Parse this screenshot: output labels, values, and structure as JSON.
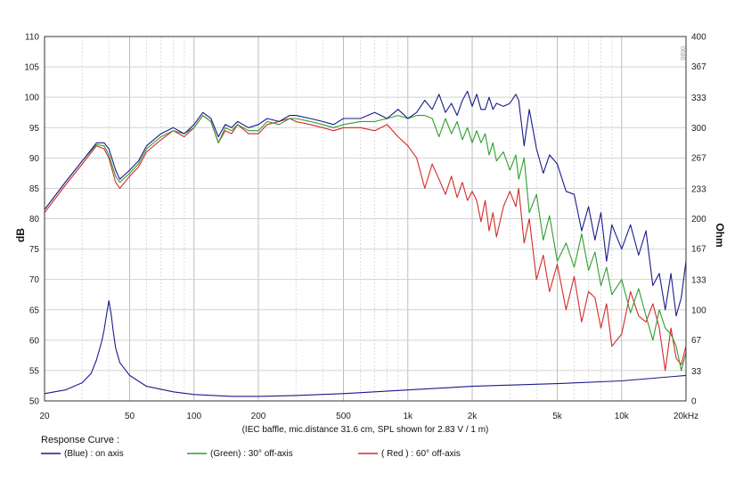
{
  "chart_data": {
    "type": "line",
    "title": "",
    "xscale": "log",
    "xlim": [
      20,
      20000
    ],
    "x_ticks": [
      20,
      50,
      100,
      200,
      500,
      1000,
      2000,
      5000,
      10000,
      20000
    ],
    "x_tick_labels": [
      "20",
      "50",
      "100",
      "200",
      "500",
      "1k",
      "2k",
      "5k",
      "10k",
      "20kHz"
    ],
    "ylim": [
      50,
      110
    ],
    "y_ticks": [
      50,
      55,
      60,
      65,
      70,
      75,
      80,
      85,
      90,
      95,
      100,
      105,
      110
    ],
    "y_tick_labels": [
      "50",
      "55",
      "60",
      "65",
      "70",
      "75",
      "80",
      "85",
      "90",
      "95",
      "100",
      "105",
      "110"
    ],
    "ylabel": "dB",
    "y2lim": [
      0,
      400
    ],
    "y2_ticks": [
      0,
      33,
      67,
      100,
      133,
      167,
      200,
      233,
      267,
      300,
      333,
      367,
      400
    ],
    "y2_tick_labels": [
      "0",
      "33",
      "67",
      "100",
      "133",
      "167",
      "200",
      "233",
      "267",
      "300",
      "333",
      "367",
      "400"
    ],
    "y2label": "Ohm",
    "caption": "(IEC baffle, mic.distance 31.6 cm, SPL shown for 2.83 V / 1 m)",
    "watermark": "0680",
    "grid": true,
    "legend": {
      "title": "Response Curve :",
      "entries": [
        {
          "label": "(Blue)  : on axis",
          "color": "#1a1a8c"
        },
        {
          "label": "(Green) : 30° off-axis",
          "color": "#2e9e2e"
        },
        {
          "label": "( Red ) : 60° off-axis",
          "color": "#d42a2a"
        }
      ]
    },
    "series": [
      {
        "name": "on axis",
        "color": "#1a1a8c",
        "axis": "left",
        "x": [
          20,
          25,
          30,
          35,
          38,
          40,
          43,
          45,
          50,
          55,
          60,
          70,
          80,
          90,
          100,
          110,
          120,
          130,
          140,
          150,
          160,
          180,
          200,
          220,
          250,
          280,
          300,
          350,
          400,
          450,
          500,
          600,
          700,
          800,
          900,
          1000,
          1100,
          1200,
          1300,
          1400,
          1500,
          1600,
          1700,
          1800,
          1900,
          2000,
          2100,
          2200,
          2300,
          2400,
          2500,
          2600,
          2800,
          3000,
          3200,
          3300,
          3500,
          3700,
          4000,
          4300,
          4600,
          5000,
          5500,
          6000,
          6500,
          7000,
          7500,
          8000,
          8500,
          9000,
          10000,
          11000,
          12000,
          13000,
          14000,
          15000,
          16000,
          17000,
          18000,
          19000,
          20000
        ],
        "y": [
          81.5,
          86,
          89.5,
          92.5,
          92.5,
          91.5,
          88,
          86.5,
          88,
          89.5,
          92,
          94,
          95,
          94,
          95.5,
          97.5,
          96.5,
          93.5,
          95.5,
          95,
          96,
          95,
          95.5,
          96.5,
          96,
          97,
          97,
          96.5,
          96,
          95.5,
          96.5,
          96.5,
          97.5,
          96.5,
          98,
          96.5,
          97.5,
          99.5,
          98,
          100.5,
          97.5,
          99,
          97,
          99.5,
          101,
          98.5,
          100.5,
          98,
          98,
          100,
          98,
          99,
          98.5,
          99,
          100.5,
          99.5,
          92,
          98,
          91.5,
          87.5,
          90.5,
          89,
          84.5,
          84,
          78,
          82,
          76.5,
          81,
          73,
          79,
          75,
          79,
          74,
          78,
          69,
          71,
          65,
          71,
          64,
          67,
          73
        ]
      },
      {
        "name": "30° off-axis",
        "color": "#2e9e2e",
        "axis": "left",
        "x": [
          20,
          25,
          30,
          35,
          38,
          40,
          43,
          45,
          50,
          55,
          60,
          70,
          80,
          90,
          100,
          110,
          120,
          130,
          140,
          150,
          160,
          180,
          200,
          220,
          250,
          280,
          300,
          350,
          400,
          450,
          500,
          600,
          700,
          800,
          900,
          1000,
          1100,
          1200,
          1300,
          1400,
          1500,
          1600,
          1700,
          1800,
          1900,
          2000,
          2100,
          2200,
          2300,
          2400,
          2500,
          2600,
          2800,
          3000,
          3200,
          3300,
          3500,
          3700,
          4000,
          4300,
          4600,
          5000,
          5500,
          6000,
          6500,
          7000,
          7500,
          8000,
          8500,
          9000,
          10000,
          11000,
          12000,
          13000,
          14000,
          15000,
          16000,
          17000,
          18000,
          19000,
          20000
        ],
        "y": [
          81.5,
          86,
          89.5,
          92.2,
          92,
          90.5,
          87,
          86,
          87.5,
          89,
          91.5,
          93.5,
          94.5,
          94,
          95,
          97,
          96,
          92.5,
          95,
          94.5,
          95.5,
          94.5,
          94.5,
          96,
          95.5,
          96.5,
          96.5,
          96,
          95.5,
          95,
          95.5,
          96,
          96,
          96.5,
          97,
          96.5,
          97,
          97,
          96.5,
          93.5,
          96.5,
          94,
          96,
          93,
          95,
          92.5,
          94.5,
          92.5,
          94,
          90.5,
          92.5,
          89.5,
          91,
          88,
          90.5,
          86.5,
          90,
          81,
          84,
          76.5,
          80.5,
          73,
          76,
          72,
          77.5,
          71.5,
          74.5,
          69,
          72,
          67.5,
          70,
          64.5,
          68.5,
          64,
          60,
          65,
          62,
          61,
          59,
          55,
          58
        ]
      },
      {
        "name": "60° off-axis",
        "color": "#d42a2a",
        "axis": "left",
        "x": [
          20,
          25,
          30,
          35,
          38,
          40,
          43,
          45,
          50,
          55,
          60,
          70,
          80,
          90,
          100,
          110,
          120,
          130,
          140,
          150,
          160,
          180,
          200,
          220,
          250,
          280,
          300,
          350,
          400,
          450,
          500,
          600,
          700,
          800,
          900,
          1000,
          1100,
          1200,
          1300,
          1400,
          1500,
          1600,
          1700,
          1800,
          1900,
          2000,
          2100,
          2200,
          2300,
          2400,
          2500,
          2600,
          2800,
          3000,
          3200,
          3300,
          3500,
          3700,
          4000,
          4300,
          4600,
          5000,
          5500,
          6000,
          6500,
          7000,
          7500,
          8000,
          8500,
          9000,
          10000,
          11000,
          12000,
          13000,
          14000,
          15000,
          16000,
          17000,
          18000,
          19000,
          20000
        ],
        "y": [
          81,
          85.5,
          89,
          92,
          91.5,
          90,
          86,
          85,
          87,
          88.5,
          91,
          93,
          94.5,
          93.5,
          95,
          97,
          96,
          92.5,
          94.5,
          94,
          95.5,
          94,
          94,
          95.5,
          96,
          96.5,
          96,
          95.5,
          95,
          94.5,
          95,
          95,
          94.5,
          95.5,
          93.5,
          92,
          90,
          85,
          89,
          86.5,
          84,
          87,
          83.5,
          86,
          83,
          84.5,
          83,
          79.5,
          83,
          78,
          81,
          77,
          82,
          84.5,
          82,
          85,
          76,
          80,
          70,
          74,
          68,
          72.5,
          65,
          70.5,
          63,
          68,
          67,
          62,
          66,
          59,
          61,
          68,
          64,
          63,
          66,
          62,
          55,
          62,
          57,
          56,
          59
        ]
      },
      {
        "name": "impedance",
        "color": "#1a1a8c",
        "axis": "right",
        "x": [
          20,
          25,
          30,
          33,
          35,
          37,
          38,
          39,
          40,
          41,
          42,
          43,
          45,
          50,
          60,
          80,
          100,
          150,
          200,
          300,
          500,
          1000,
          2000,
          5000,
          10000,
          20000
        ],
        "y": [
          8,
          12,
          20,
          30,
          45,
          65,
          78,
          95,
          110,
          95,
          75,
          58,
          42,
          28,
          16,
          10,
          7,
          5,
          5,
          6,
          8,
          12,
          16,
          19,
          22,
          28
        ]
      }
    ]
  }
}
